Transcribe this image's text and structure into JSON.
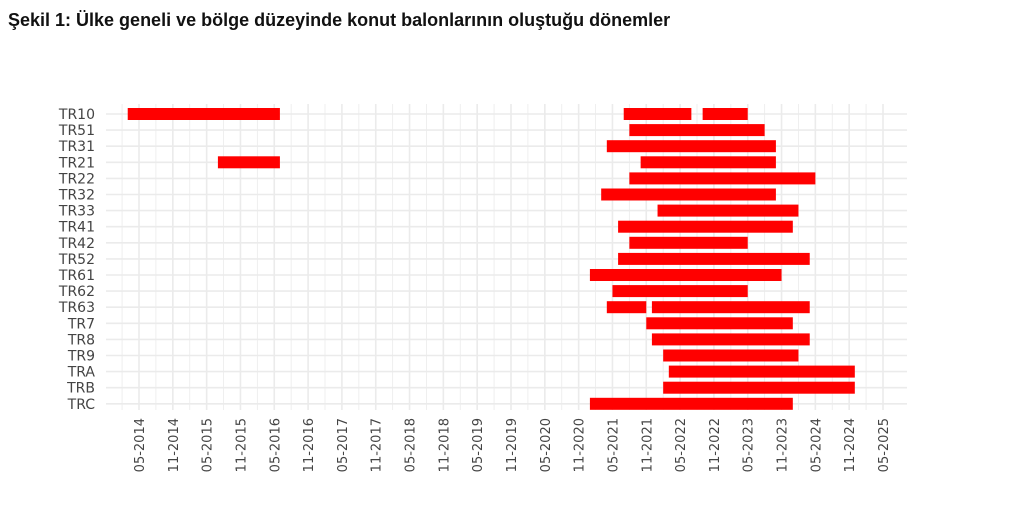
{
  "title": "Şekil 1: Ülke geneli ve bölge düzeyinde konut balonlarının oluştuğu dönemler",
  "colors": {
    "bar": "#ff0000",
    "grid": "#ebebeb",
    "text": "#444444",
    "background": "#ffffff"
  },
  "chart_data": {
    "type": "bar",
    "orientation": "horizontal-range",
    "title": "Şekil 1: Ülke geneli ve bölge düzeyinde konut balonlarının oluştuğu dönemler",
    "xlabel": "",
    "ylabel": "",
    "grid": true,
    "legend": "none",
    "x_ticks": [
      "05-2014",
      "11-2014",
      "05-2015",
      "11-2015",
      "05-2016",
      "11-2016",
      "05-2017",
      "11-2017",
      "05-2018",
      "11-2018",
      "05-2019",
      "11-2019",
      "05-2020",
      "11-2020",
      "05-2021",
      "11-2021",
      "05-2022",
      "11-2022",
      "05-2023",
      "11-2023",
      "05-2024",
      "11-2024",
      "05-2025"
    ],
    "xlim": [
      "2014-01",
      "2025-07"
    ],
    "categories": [
      "TR10",
      "TR51",
      "TR31",
      "TR21",
      "TR22",
      "TR32",
      "TR33",
      "TR41",
      "TR42",
      "TR52",
      "TR61",
      "TR62",
      "TR63",
      "TR7",
      "TR8",
      "TR9",
      "TRA",
      "TRB",
      "TRC"
    ],
    "periods": [
      {
        "region": "TR10",
        "start": "2014-03",
        "end": "2016-06"
      },
      {
        "region": "TR10",
        "start": "2021-07",
        "end": "2022-07"
      },
      {
        "region": "TR10",
        "start": "2022-09",
        "end": "2023-05"
      },
      {
        "region": "TR51",
        "start": "2021-08",
        "end": "2023-08"
      },
      {
        "region": "TR31",
        "start": "2021-04",
        "end": "2023-10"
      },
      {
        "region": "TR21",
        "start": "2015-07",
        "end": "2016-06"
      },
      {
        "region": "TR21",
        "start": "2021-10",
        "end": "2023-10"
      },
      {
        "region": "TR22",
        "start": "2021-08",
        "end": "2024-05"
      },
      {
        "region": "TR32",
        "start": "2021-03",
        "end": "2023-10"
      },
      {
        "region": "TR33",
        "start": "2022-01",
        "end": "2024-02"
      },
      {
        "region": "TR41",
        "start": "2021-06",
        "end": "2024-01"
      },
      {
        "region": "TR42",
        "start": "2021-08",
        "end": "2023-05"
      },
      {
        "region": "TR52",
        "start": "2021-06",
        "end": "2024-04"
      },
      {
        "region": "TR61",
        "start": "2021-01",
        "end": "2023-11"
      },
      {
        "region": "TR62",
        "start": "2021-05",
        "end": "2023-05"
      },
      {
        "region": "TR63",
        "start": "2021-04",
        "end": "2021-11"
      },
      {
        "region": "TR63",
        "start": "2021-12",
        "end": "2024-04"
      },
      {
        "region": "TR7",
        "start": "2021-11",
        "end": "2024-01"
      },
      {
        "region": "TR8",
        "start": "2021-12",
        "end": "2024-04"
      },
      {
        "region": "TR9",
        "start": "2022-02",
        "end": "2024-02"
      },
      {
        "region": "TRA",
        "start": "2022-03",
        "end": "2024-12"
      },
      {
        "region": "TRB",
        "start": "2022-02",
        "end": "2024-12"
      },
      {
        "region": "TRC",
        "start": "2021-01",
        "end": "2024-01"
      }
    ]
  }
}
